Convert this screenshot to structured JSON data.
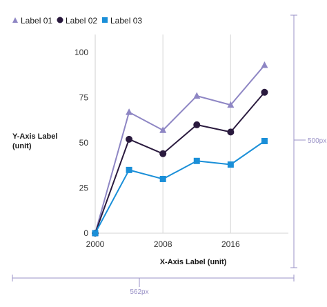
{
  "chart_data": {
    "type": "line",
    "x": [
      2000,
      2004,
      2008,
      2012,
      2016,
      2020
    ],
    "xticks": [
      "2000",
      "2008",
      "2016"
    ],
    "xtick_values": [
      2000,
      2008,
      2016
    ],
    "xlim": [
      2000,
      2022
    ],
    "ylim": [
      0,
      110
    ],
    "yticks": [
      "0",
      "25",
      "50",
      "75",
      "100"
    ],
    "ytick_values": [
      0,
      25,
      50,
      75,
      100
    ],
    "xlabel": "X-Axis Label (unit)",
    "ylabel_line1": "Y-Axis Label",
    "ylabel_line2": "(unit)",
    "grid": "vertical",
    "legend_position": "top-left",
    "series": [
      {
        "name": "Label 01",
        "marker": "triangle",
        "color": "#8e86c4",
        "values": [
          0,
          67,
          57,
          76,
          71,
          93
        ]
      },
      {
        "name": "Label 02",
        "marker": "circle",
        "color": "#2a1a3e",
        "values": [
          0,
          52,
          44,
          60,
          56,
          78
        ]
      },
      {
        "name": "Label 03",
        "marker": "square",
        "color": "#1a8fd8",
        "values": [
          0,
          35,
          30,
          40,
          38,
          51
        ]
      }
    ]
  },
  "dimensions": {
    "height_label": "500px",
    "width_label": "562px",
    "color": "#9a92c7"
  }
}
